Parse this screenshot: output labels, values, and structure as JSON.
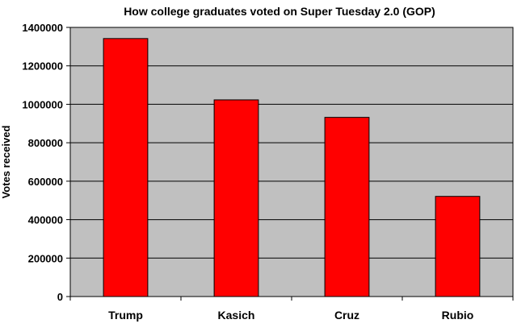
{
  "chart_data": {
    "type": "bar",
    "title": "How college graduates voted on Super Tuesday 2.0 (GOP)",
    "xlabel": "",
    "ylabel": "Votes received",
    "categories": [
      "Trump",
      "Kasich",
      "Cruz",
      "Rubio"
    ],
    "values": [
      1342000,
      1023000,
      932000,
      521000
    ],
    "ylim": [
      0,
      1400000
    ],
    "yticks": [
      0,
      200000,
      400000,
      600000,
      800000,
      1000000,
      1200000,
      1400000
    ],
    "ytick_labels": [
      "0",
      "200000",
      "400000",
      "600000",
      "800000",
      "1000000",
      "1200000",
      "1400000"
    ],
    "grid": true,
    "legend": "none",
    "colors": {
      "bar_fill": "#ff0000",
      "bar_stroke": "#000000",
      "plot_background": "#c0c0c0",
      "gridline": "#000000",
      "axis": "#000000"
    }
  }
}
